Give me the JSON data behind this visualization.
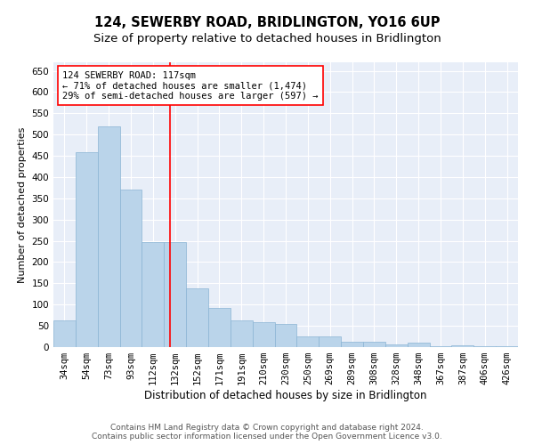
{
  "title": "124, SEWERBY ROAD, BRIDLINGTON, YO16 6UP",
  "subtitle": "Size of property relative to detached houses in Bridlington",
  "xlabel": "Distribution of detached houses by size in Bridlington",
  "ylabel": "Number of detached properties",
  "categories": [
    "34sqm",
    "54sqm",
    "73sqm",
    "93sqm",
    "112sqm",
    "132sqm",
    "152sqm",
    "171sqm",
    "191sqm",
    "210sqm",
    "230sqm",
    "250sqm",
    "269sqm",
    "289sqm",
    "308sqm",
    "328sqm",
    "348sqm",
    "367sqm",
    "387sqm",
    "406sqm",
    "426sqm"
  ],
  "values": [
    62,
    458,
    520,
    370,
    248,
    248,
    138,
    92,
    62,
    58,
    55,
    25,
    25,
    12,
    12,
    6,
    10,
    3,
    5,
    3,
    3
  ],
  "bar_color": "#bad4ea",
  "bar_edgecolor": "#8ab4d4",
  "bar_linewidth": 0.5,
  "annotation_line1": "124 SEWERBY ROAD: 117sqm",
  "annotation_line2": "← 71% of detached houses are smaller (1,474)",
  "annotation_line3": "29% of semi-detached houses are larger (597) →",
  "ylim": [
    0,
    670
  ],
  "yticks": [
    0,
    50,
    100,
    150,
    200,
    250,
    300,
    350,
    400,
    450,
    500,
    550,
    600,
    650
  ],
  "background_color": "#e8eef8",
  "grid_color": "#ffffff",
  "footer_line1": "Contains HM Land Registry data © Crown copyright and database right 2024.",
  "footer_line2": "Contains public sector information licensed under the Open Government Licence v3.0.",
  "title_fontsize": 10.5,
  "subtitle_fontsize": 9.5,
  "xlabel_fontsize": 8.5,
  "ylabel_fontsize": 8,
  "tick_fontsize": 7.5,
  "footer_fontsize": 6.5,
  "annotation_fontsize": 7.5
}
